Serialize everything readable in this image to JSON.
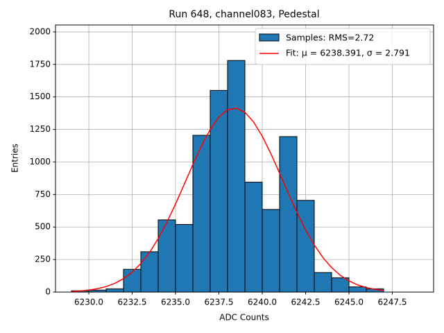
{
  "chart_data": {
    "type": "histogram",
    "title": "Run 648, channel083, Pedestal",
    "x_label": "ADC Counts",
    "y_label": "Entries",
    "histogram": {
      "name": "Samples: RMS=2.72",
      "color": "#1f77b4",
      "edgecolor": "#000000",
      "bins": [
        6229,
        6230,
        6231,
        6232,
        6233,
        6234,
        6235,
        6236,
        6237,
        6238,
        6239,
        6240,
        6241,
        6242,
        6243,
        6244,
        6245,
        6246,
        6247
      ],
      "counts": [
        10,
        15,
        25,
        175,
        310,
        555,
        520,
        1205,
        1550,
        1780,
        845,
        635,
        1195,
        705,
        150,
        110,
        40,
        25
      ]
    },
    "fit": {
      "name": "Fit: μ = 6238.391, σ = 2.791",
      "color": "#ff0000",
      "x": [
        6229,
        6229.5,
        6230,
        6230.5,
        6231,
        6231.5,
        6232,
        6232.5,
        6233,
        6233.5,
        6234,
        6234.5,
        6235,
        6235.5,
        6236,
        6236.5,
        6237,
        6237.5,
        6238,
        6238.5,
        6239,
        6239.5,
        6240,
        6240.5,
        6241,
        6241.5,
        6242,
        6242.5,
        6243,
        6243.5,
        6244,
        6244.5,
        6245,
        6245.5,
        6246,
        6246.5,
        6247
      ],
      "values": [
        4.9,
        8.9,
        15.4,
        26.0,
        42.4,
        67.1,
        102.8,
        152.5,
        219.1,
        304.7,
        410.4,
        535.4,
        676.4,
        827.5,
        980.3,
        1124.8,
        1249.7,
        1344.7,
        1401.1,
        1413.9,
        1381.7,
        1307.6,
        1198.4,
        1063.5,
        914.1,
        760.9,
        613.3,
        478.8,
        361.9,
        264.8,
        187.9,
        128.9,
        85.7,
        55.2,
        34.4,
        20.8,
        12.2
      ]
    },
    "xlim": [
      6228.08,
      6249.88
    ],
    "ylim": [
      0,
      2053
    ],
    "xticks": [
      {
        "value": 6230,
        "label": "6230.0"
      },
      {
        "value": 6232.5,
        "label": "6232.5"
      },
      {
        "value": 6235,
        "label": "6235.0"
      },
      {
        "value": 6237.5,
        "label": "6237.5"
      },
      {
        "value": 6240,
        "label": "6240.0"
      },
      {
        "value": 6242.5,
        "label": "6242.5"
      },
      {
        "value": 6245,
        "label": "6245.0"
      },
      {
        "value": 6247.5,
        "label": "6247.5"
      }
    ],
    "yticks": [
      0,
      250,
      500,
      750,
      1000,
      1250,
      1500,
      1750,
      2000
    ],
    "grid": true,
    "legend": "upper right"
  }
}
